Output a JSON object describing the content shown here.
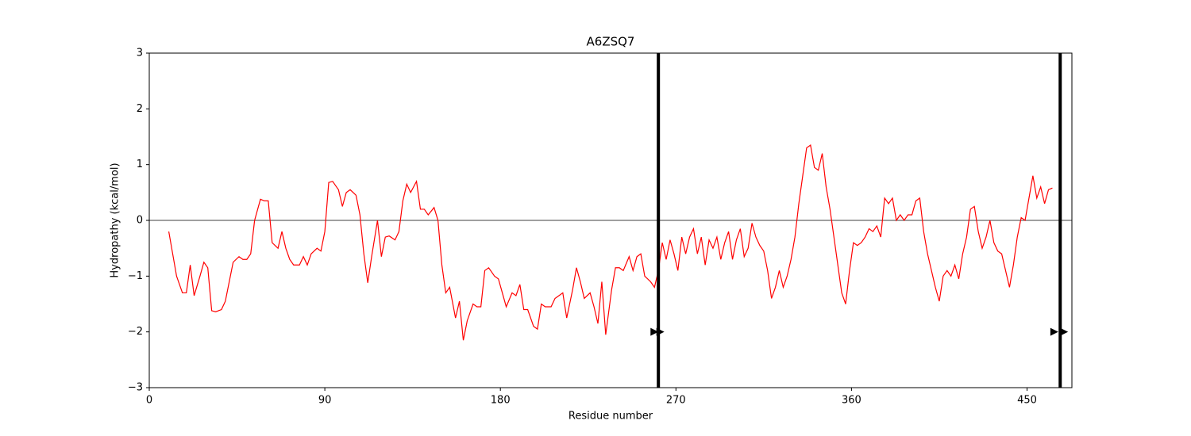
{
  "chart_data": {
    "type": "line",
    "title": "A6ZSQ7",
    "x_label": "Residue number",
    "y_label": "Hydropathy (kcal/mol)",
    "xlim": [
      0,
      473
    ],
    "ylim": [
      -3,
      3
    ],
    "xticks": [
      0,
      90,
      180,
      270,
      360,
      450
    ],
    "yticks": [
      {
        "value": -3,
        "label": "−3"
      },
      {
        "value": -2,
        "label": "−2"
      },
      {
        "value": -1,
        "label": "−1"
      },
      0,
      1,
      2,
      3
    ],
    "color": "#ff0000",
    "x": [
      10,
      12,
      14,
      17,
      19,
      21,
      23,
      26,
      28,
      30,
      32,
      34,
      37,
      39,
      41,
      43,
      46,
      48,
      50,
      52,
      54,
      57,
      59,
      61,
      63,
      66,
      68,
      70,
      72,
      74,
      77,
      79,
      81,
      83,
      86,
      88,
      90,
      92,
      94,
      97,
      99,
      101,
      103,
      106,
      108,
      110,
      112,
      114,
      117,
      119,
      121,
      123,
      126,
      128,
      130,
      132,
      134,
      137,
      139,
      141,
      143,
      146,
      148,
      150,
      152,
      154,
      157,
      159,
      161,
      163,
      166,
      168,
      170,
      172,
      174,
      177,
      179,
      181,
      183,
      186,
      188,
      190,
      192,
      194,
      197,
      199,
      201,
      203,
      206,
      208,
      210,
      212,
      214,
      217,
      219,
      221,
      223,
      226,
      228,
      230,
      232,
      234,
      237,
      239,
      241,
      243,
      246,
      248,
      250,
      252,
      254,
      257,
      259,
      261,
      263,
      265,
      267,
      269,
      271,
      273,
      275,
      277,
      279,
      281,
      283,
      285,
      287,
      289,
      291,
      293,
      295,
      297,
      299,
      301,
      303,
      305,
      307,
      309,
      311,
      313,
      315,
      317,
      319,
      321,
      323,
      325,
      327,
      329,
      331,
      333,
      335,
      337,
      339,
      341,
      343,
      345,
      347,
      349,
      351,
      353,
      355,
      357,
      359,
      361,
      363,
      365,
      367,
      369,
      371,
      373,
      375,
      377,
      379,
      381,
      383,
      385,
      387,
      389,
      391,
      393,
      395,
      397,
      399,
      401,
      403,
      405,
      407,
      409,
      411,
      413,
      415,
      417,
      419,
      421,
      423,
      425,
      427,
      429,
      431,
      433,
      435,
      437,
      439,
      441,
      443,
      445,
      447,
      449,
      451,
      453,
      455,
      457,
      459,
      461,
      463
    ],
    "values": [
      -0.2,
      -0.6,
      -1.0,
      -1.3,
      -1.3,
      -0.8,
      -1.35,
      -1.0,
      -0.75,
      -0.85,
      -1.62,
      -1.64,
      -1.6,
      -1.45,
      -1.1,
      -0.75,
      -0.65,
      -0.7,
      -0.7,
      -0.6,
      0.0,
      0.38,
      0.35,
      0.35,
      -0.4,
      -0.5,
      -0.2,
      -0.5,
      -0.7,
      -0.8,
      -0.8,
      -0.65,
      -0.8,
      -0.6,
      -0.5,
      -0.55,
      -0.2,
      0.68,
      0.7,
      0.55,
      0.25,
      0.5,
      0.55,
      0.45,
      0.1,
      -0.6,
      -1.12,
      -0.65,
      0.0,
      -0.65,
      -0.3,
      -0.28,
      -0.35,
      -0.2,
      0.35,
      0.65,
      0.5,
      0.7,
      0.2,
      0.2,
      0.1,
      0.23,
      0.0,
      -0.8,
      -1.3,
      -1.2,
      -1.75,
      -1.45,
      -2.15,
      -1.8,
      -1.5,
      -1.55,
      -1.55,
      -0.9,
      -0.85,
      -1.0,
      -1.05,
      -1.3,
      -1.55,
      -1.3,
      -1.35,
      -1.15,
      -1.6,
      -1.6,
      -1.9,
      -1.95,
      -1.5,
      -1.55,
      -1.55,
      -1.4,
      -1.35,
      -1.3,
      -1.75,
      -1.25,
      -0.85,
      -1.1,
      -1.4,
      -1.3,
      -1.55,
      -1.85,
      -1.1,
      -2.05,
      -1.25,
      -0.85,
      -0.85,
      -0.9,
      -0.65,
      -0.9,
      -0.65,
      -0.6,
      -1.0,
      -1.1,
      -1.2,
      -0.9,
      -0.4,
      -0.7,
      -0.35,
      -0.6,
      -0.9,
      -0.3,
      -0.6,
      -0.3,
      -0.15,
      -0.6,
      -0.3,
      -0.8,
      -0.35,
      -0.5,
      -0.3,
      -0.7,
      -0.4,
      -0.2,
      -0.7,
      -0.35,
      -0.15,
      -0.65,
      -0.5,
      -0.05,
      -0.3,
      -0.45,
      -0.55,
      -0.9,
      -1.4,
      -1.2,
      -0.9,
      -1.2,
      -1.0,
      -0.7,
      -0.3,
      0.3,
      0.8,
      1.3,
      1.35,
      0.95,
      0.9,
      1.2,
      0.6,
      0.2,
      -0.3,
      -0.8,
      -1.3,
      -1.5,
      -0.9,
      -0.4,
      -0.45,
      -0.4,
      -0.3,
      -0.15,
      -0.2,
      -0.1,
      -0.3,
      0.4,
      0.3,
      0.4,
      0.0,
      0.1,
      0.0,
      0.1,
      0.1,
      0.35,
      0.4,
      -0.2,
      -0.6,
      -0.9,
      -1.2,
      -1.45,
      -1.0,
      -0.9,
      -1.0,
      -0.8,
      -1.05,
      -0.6,
      -0.3,
      0.2,
      0.25,
      -0.2,
      -0.5,
      -0.3,
      0.0,
      -0.4,
      -0.55,
      -0.6,
      -0.9,
      -1.2,
      -0.8,
      -0.3,
      0.05,
      0.0,
      0.4,
      0.8,
      0.4,
      0.6,
      0.3,
      0.55,
      0.58
    ],
    "hline": 0,
    "vlines": [
      261,
      467
    ],
    "markers": {
      "x": [
        259,
        262,
        464,
        469
      ],
      "y": [
        -2,
        -2,
        -2,
        -2
      ],
      "color": "#000000"
    }
  }
}
